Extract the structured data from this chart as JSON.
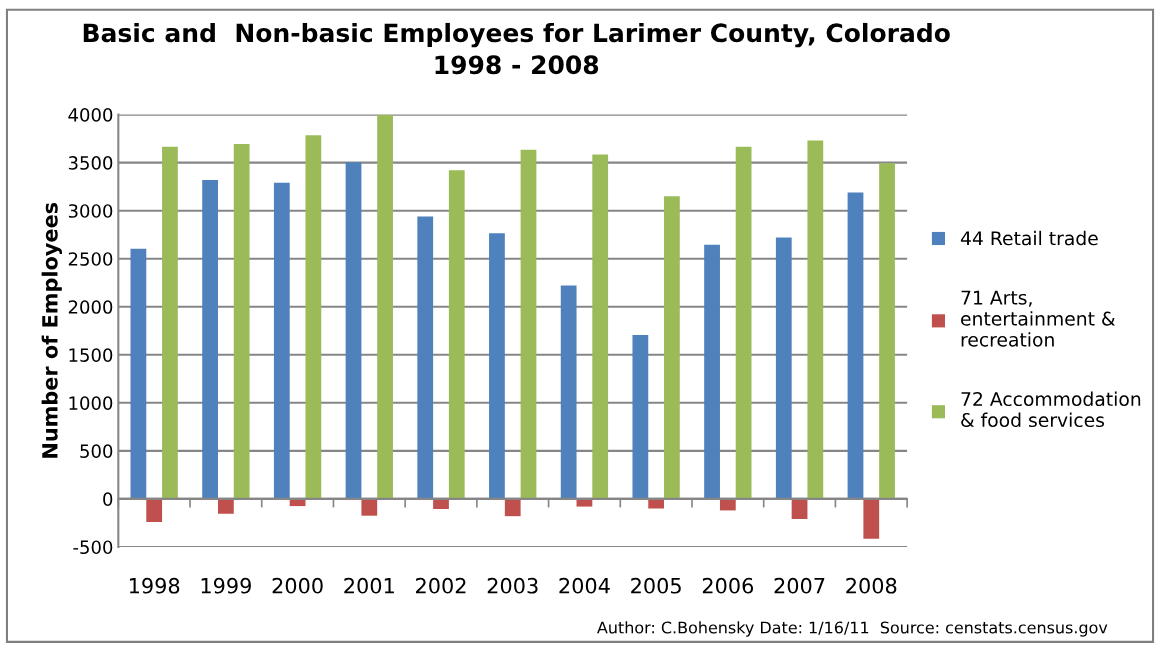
{
  "chart_data": {
    "type": "bar",
    "title": "Basic and  Non-basic Employees for Larimer County, Colorado\n1998 - 2008",
    "ylabel": "Number of Employees",
    "categories": [
      "1998",
      "1999",
      "2000",
      "2001",
      "2002",
      "2003",
      "2004",
      "2005",
      "2006",
      "2007",
      "2008"
    ],
    "series": [
      {
        "name": "44 Retail trade",
        "color": "#4f81bd",
        "values": [
          2605,
          3320,
          3290,
          3505,
          2940,
          2765,
          2220,
          1705,
          2645,
          2720,
          3190
        ]
      },
      {
        "name": "71 Arts,\nentertainment &\nrecreation",
        "color": "#c0504d",
        "values": [
          -240,
          -155,
          -75,
          -175,
          -105,
          -180,
          -80,
          -100,
          -120,
          -210,
          -415
        ]
      },
      {
        "name": "72 Accommodation\n& food services",
        "color": "#9bbb59",
        "values": [
          3665,
          3695,
          3785,
          3995,
          3420,
          3635,
          3585,
          3150,
          3665,
          3730,
          3495
        ]
      }
    ],
    "ylim": [
      -500,
      4000
    ],
    "yticks": [
      -500,
      0,
      500,
      1000,
      1500,
      2000,
      2500,
      3000,
      3500,
      4000
    ],
    "grid": "y",
    "legend": "right",
    "annotations": [
      "Author: C.Bohensky Date: 1/16/11  Source: censtats.census.gov"
    ]
  }
}
